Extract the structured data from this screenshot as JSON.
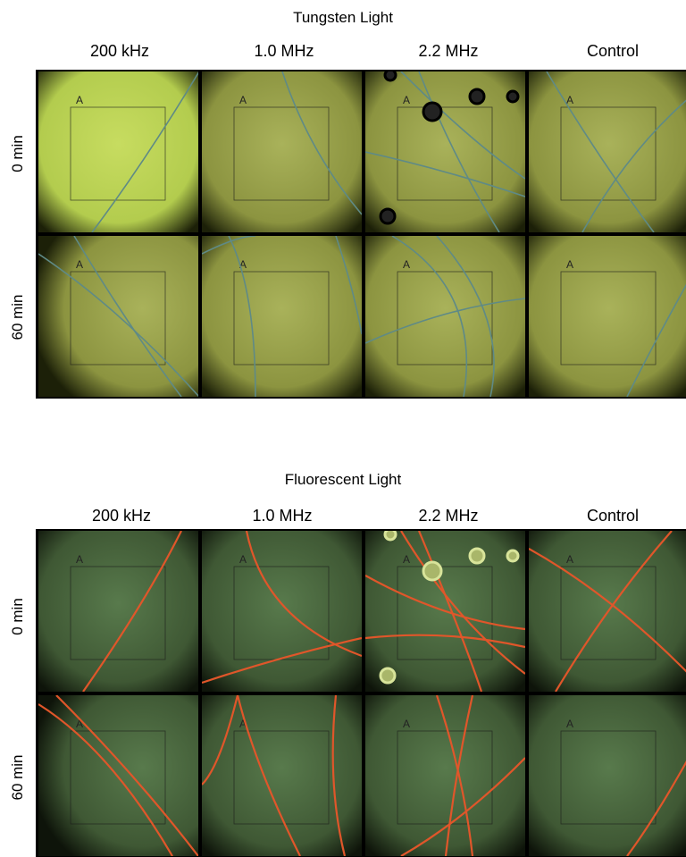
{
  "sections": [
    {
      "title": "Tungsten Light",
      "columns": [
        "200 kHz",
        "1.0 MHz",
        "2.2 MHz",
        "Control"
      ],
      "rows": [
        "0 min",
        "60 min"
      ],
      "light": "tungsten",
      "panel_label": "A"
    },
    {
      "title": "Fluorescent Light",
      "columns": [
        "200 kHz",
        "1.0 MHz",
        "2.2 MHz",
        "Control"
      ],
      "rows": [
        "0 min",
        "60 min"
      ],
      "light": "fluorescent",
      "panel_label": "A"
    }
  ],
  "colors": {
    "tungsten_bg": "#8b9a3a",
    "tungsten_bright": "#c8d860",
    "fluor_bg": "#3c5232",
    "fiber_tungsten": "#5f8a86",
    "fiber_fluor": "#e0562a"
  }
}
